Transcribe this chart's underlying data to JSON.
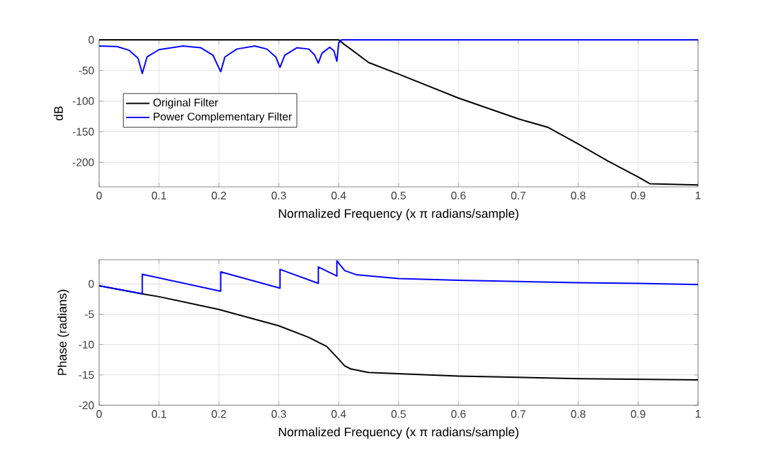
{
  "chart_data": [
    {
      "type": "line",
      "xlabel": "Normalized Frequency (x π radians/sample)",
      "ylabel": "dB",
      "xlim": [
        0,
        1
      ],
      "ylim": [
        -240,
        0
      ],
      "xticks": [
        0,
        0.1,
        0.2,
        0.3,
        0.4,
        0.5,
        0.6,
        0.7,
        0.8,
        0.9,
        1
      ],
      "yticks": [
        -200,
        -150,
        -100,
        -50,
        0
      ],
      "grid": true,
      "legend": "left",
      "series": [
        {
          "name": "Original Filter",
          "color": "#000000",
          "x": [
            0,
            0.1,
            0.2,
            0.3,
            0.38,
            0.4,
            0.41,
            0.42,
            0.45,
            0.5,
            0.6,
            0.7,
            0.75,
            0.8,
            0.85,
            0.9,
            0.92,
            1
          ],
          "values": [
            0,
            0,
            0,
            0,
            0,
            0,
            -8,
            -15,
            -37,
            -56,
            -95,
            -129,
            -143,
            -170,
            -198,
            -224,
            -235,
            -237
          ]
        },
        {
          "name": "Power Complementary Filter",
          "color": "#0000ff",
          "x": [
            0,
            0.03,
            0.05,
            0.065,
            0.072,
            0.08,
            0.1,
            0.14,
            0.17,
            0.19,
            0.203,
            0.21,
            0.23,
            0.26,
            0.28,
            0.295,
            0.302,
            0.31,
            0.33,
            0.35,
            0.36,
            0.366,
            0.372,
            0.385,
            0.392,
            0.397,
            0.4,
            0.405,
            1
          ],
          "values": [
            -10,
            -11,
            -17,
            -30,
            -55,
            -28,
            -16,
            -10,
            -13,
            -25,
            -52,
            -28,
            -15,
            -10,
            -15,
            -28,
            -45,
            -25,
            -13,
            -15,
            -25,
            -38,
            -22,
            -12,
            -18,
            -35,
            -5,
            0,
            0
          ]
        }
      ]
    },
    {
      "type": "line",
      "xlabel": "Normalized Frequency (x π radians/sample)",
      "ylabel": "Phase (radians)",
      "xlim": [
        0,
        1
      ],
      "ylim": [
        -20,
        4
      ],
      "xticks": [
        0,
        0.1,
        0.2,
        0.3,
        0.4,
        0.5,
        0.6,
        0.7,
        0.8,
        0.9,
        1
      ],
      "yticks": [
        -20,
        -15,
        -10,
        -5,
        0
      ],
      "grid": true,
      "series": [
        {
          "color": "#000000",
          "x": [
            0,
            0.07,
            0.1,
            0.2,
            0.3,
            0.35,
            0.38,
            0.4,
            0.41,
            0.42,
            0.45,
            0.5,
            0.6,
            0.7,
            0.8,
            0.9,
            1
          ],
          "values": [
            -0.3,
            -1.6,
            -2.1,
            -4.2,
            -6.9,
            -8.8,
            -10.3,
            -12.4,
            -13.5,
            -14,
            -14.6,
            -14.8,
            -15.2,
            -15.4,
            -15.6,
            -15.7,
            -15.8
          ]
        },
        {
          "color": "#0000ff",
          "x": [
            0,
            0.072,
            0.072,
            0.203,
            0.203,
            0.302,
            0.302,
            0.366,
            0.366,
            0.397,
            0.397,
            0.41,
            0.43,
            0.5,
            0.6,
            0.7,
            0.8,
            0.9,
            1
          ],
          "values": [
            -0.3,
            -1.6,
            1.6,
            -1.2,
            2.0,
            -0.7,
            2.4,
            0.1,
            2.8,
            1.3,
            3.8,
            2.2,
            1.5,
            0.9,
            0.6,
            0.4,
            0.2,
            0.1,
            -0.1
          ]
        }
      ]
    }
  ]
}
